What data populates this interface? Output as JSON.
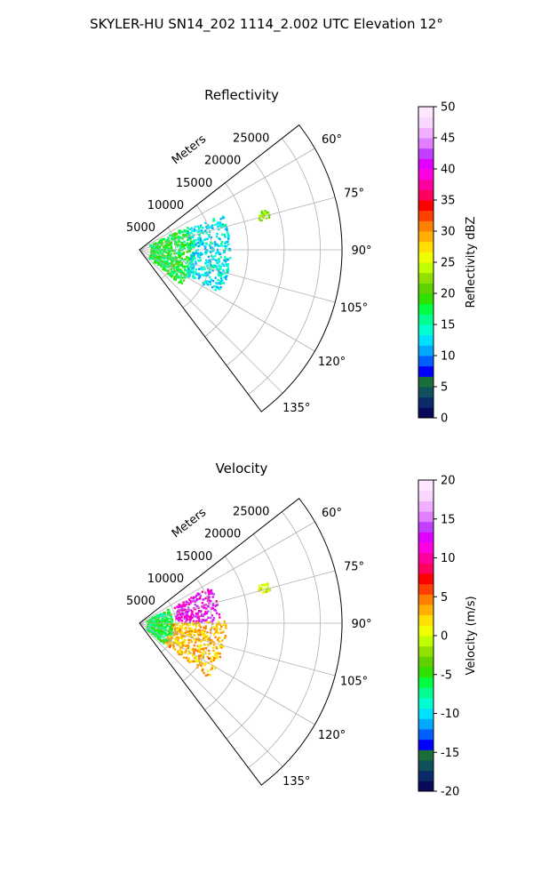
{
  "figure": {
    "suptitle": "SKYLER-HU  SN14_202  1114_2.002 UTC Elevation 12°"
  },
  "chart_data": [
    {
      "type": "polar-sector",
      "title": "Reflectivity",
      "range_label": "Meters",
      "range_max": 28000,
      "range_ticks": [
        "5000",
        "10000",
        "15000",
        "20000",
        "25000"
      ],
      "azimuth_min_deg": 52,
      "azimuth_max_deg": 143,
      "azimuth_ticks": [
        "60°",
        "75°",
        "90°",
        "105°",
        "120°",
        "135°"
      ],
      "grid": true,
      "colorbar": {
        "label": "Reflectivity dBZ",
        "min": 0,
        "max": 50,
        "ticks": [
          "0",
          "5",
          "10",
          "15",
          "20",
          "25",
          "30",
          "35",
          "40",
          "45",
          "50"
        ],
        "colors": [
          "#0a0a5a",
          "#0b2a6a",
          "#10505a",
          "#1a6e3a",
          "#0000ff",
          "#0060ff",
          "#00a8ff",
          "#00e0ff",
          "#00ffd0",
          "#00ff90",
          "#00ff40",
          "#30e000",
          "#60d000",
          "#90e000",
          "#c0ff00",
          "#f0ff00",
          "#ffe000",
          "#ffb000",
          "#ff8000",
          "#ff4000",
          "#ff0000",
          "#ff0060",
          "#ff00a0",
          "#ff00e0",
          "#e000ff",
          "#c040ff",
          "#e080ff",
          "#f0b0ff",
          "#f8d8ff",
          "#ffe8ff"
        ]
      },
      "echo_regions": [
        {
          "az": [
            62,
            130
          ],
          "range_m": [
            1500,
            7500
          ],
          "value_dbz": 18
        },
        {
          "az": [
            66,
            118
          ],
          "range_m": [
            7000,
            12500
          ],
          "value_dbz": 13
        },
        {
          "az": [
            72,
            76
          ],
          "range_m": [
            17000,
            18500
          ],
          "value_dbz": 22
        }
      ]
    },
    {
      "type": "polar-sector",
      "title": "Velocity",
      "range_label": "Meters",
      "range_max": 28000,
      "range_ticks": [
        "5000",
        "10000",
        "15000",
        "20000",
        "25000"
      ],
      "azimuth_min_deg": 52,
      "azimuth_max_deg": 143,
      "azimuth_ticks": [
        "60°",
        "75°",
        "90°",
        "105°",
        "120°",
        "135°"
      ],
      "grid": true,
      "colorbar": {
        "label": "Velocity (m/s)",
        "min": -20,
        "max": 20,
        "ticks": [
          "-20",
          "-15",
          "-10",
          "-5",
          "0",
          "5",
          "10",
          "15",
          "20"
        ],
        "colors": [
          "#0a0a5a",
          "#0b2a6a",
          "#10505a",
          "#1a6e3a",
          "#0000ff",
          "#0060ff",
          "#00a8ff",
          "#00e0ff",
          "#00ffd0",
          "#00ff90",
          "#00ff40",
          "#30e000",
          "#60d000",
          "#90e000",
          "#c0ff00",
          "#f0ff00",
          "#ffe000",
          "#ffb000",
          "#ff8000",
          "#ff4000",
          "#ff0000",
          "#ff0060",
          "#ff00a0",
          "#ff00e0",
          "#e000ff",
          "#c040ff",
          "#e080ff",
          "#f0b0ff",
          "#f8d8ff",
          "#ffe8ff"
        ]
      },
      "echo_regions": [
        {
          "az": [
            62,
            88
          ],
          "range_m": [
            5000,
            11000
          ],
          "value_ms": 12
        },
        {
          "az": [
            88,
            128
          ],
          "range_m": [
            4000,
            12000
          ],
          "value_ms": 3
        },
        {
          "az": [
            62,
            130
          ],
          "range_m": [
            1000,
            4500
          ],
          "value_ms": -6
        },
        {
          "az": [
            72,
            76
          ],
          "range_m": [
            17000,
            18500
          ],
          "value_ms": 0
        }
      ]
    }
  ]
}
